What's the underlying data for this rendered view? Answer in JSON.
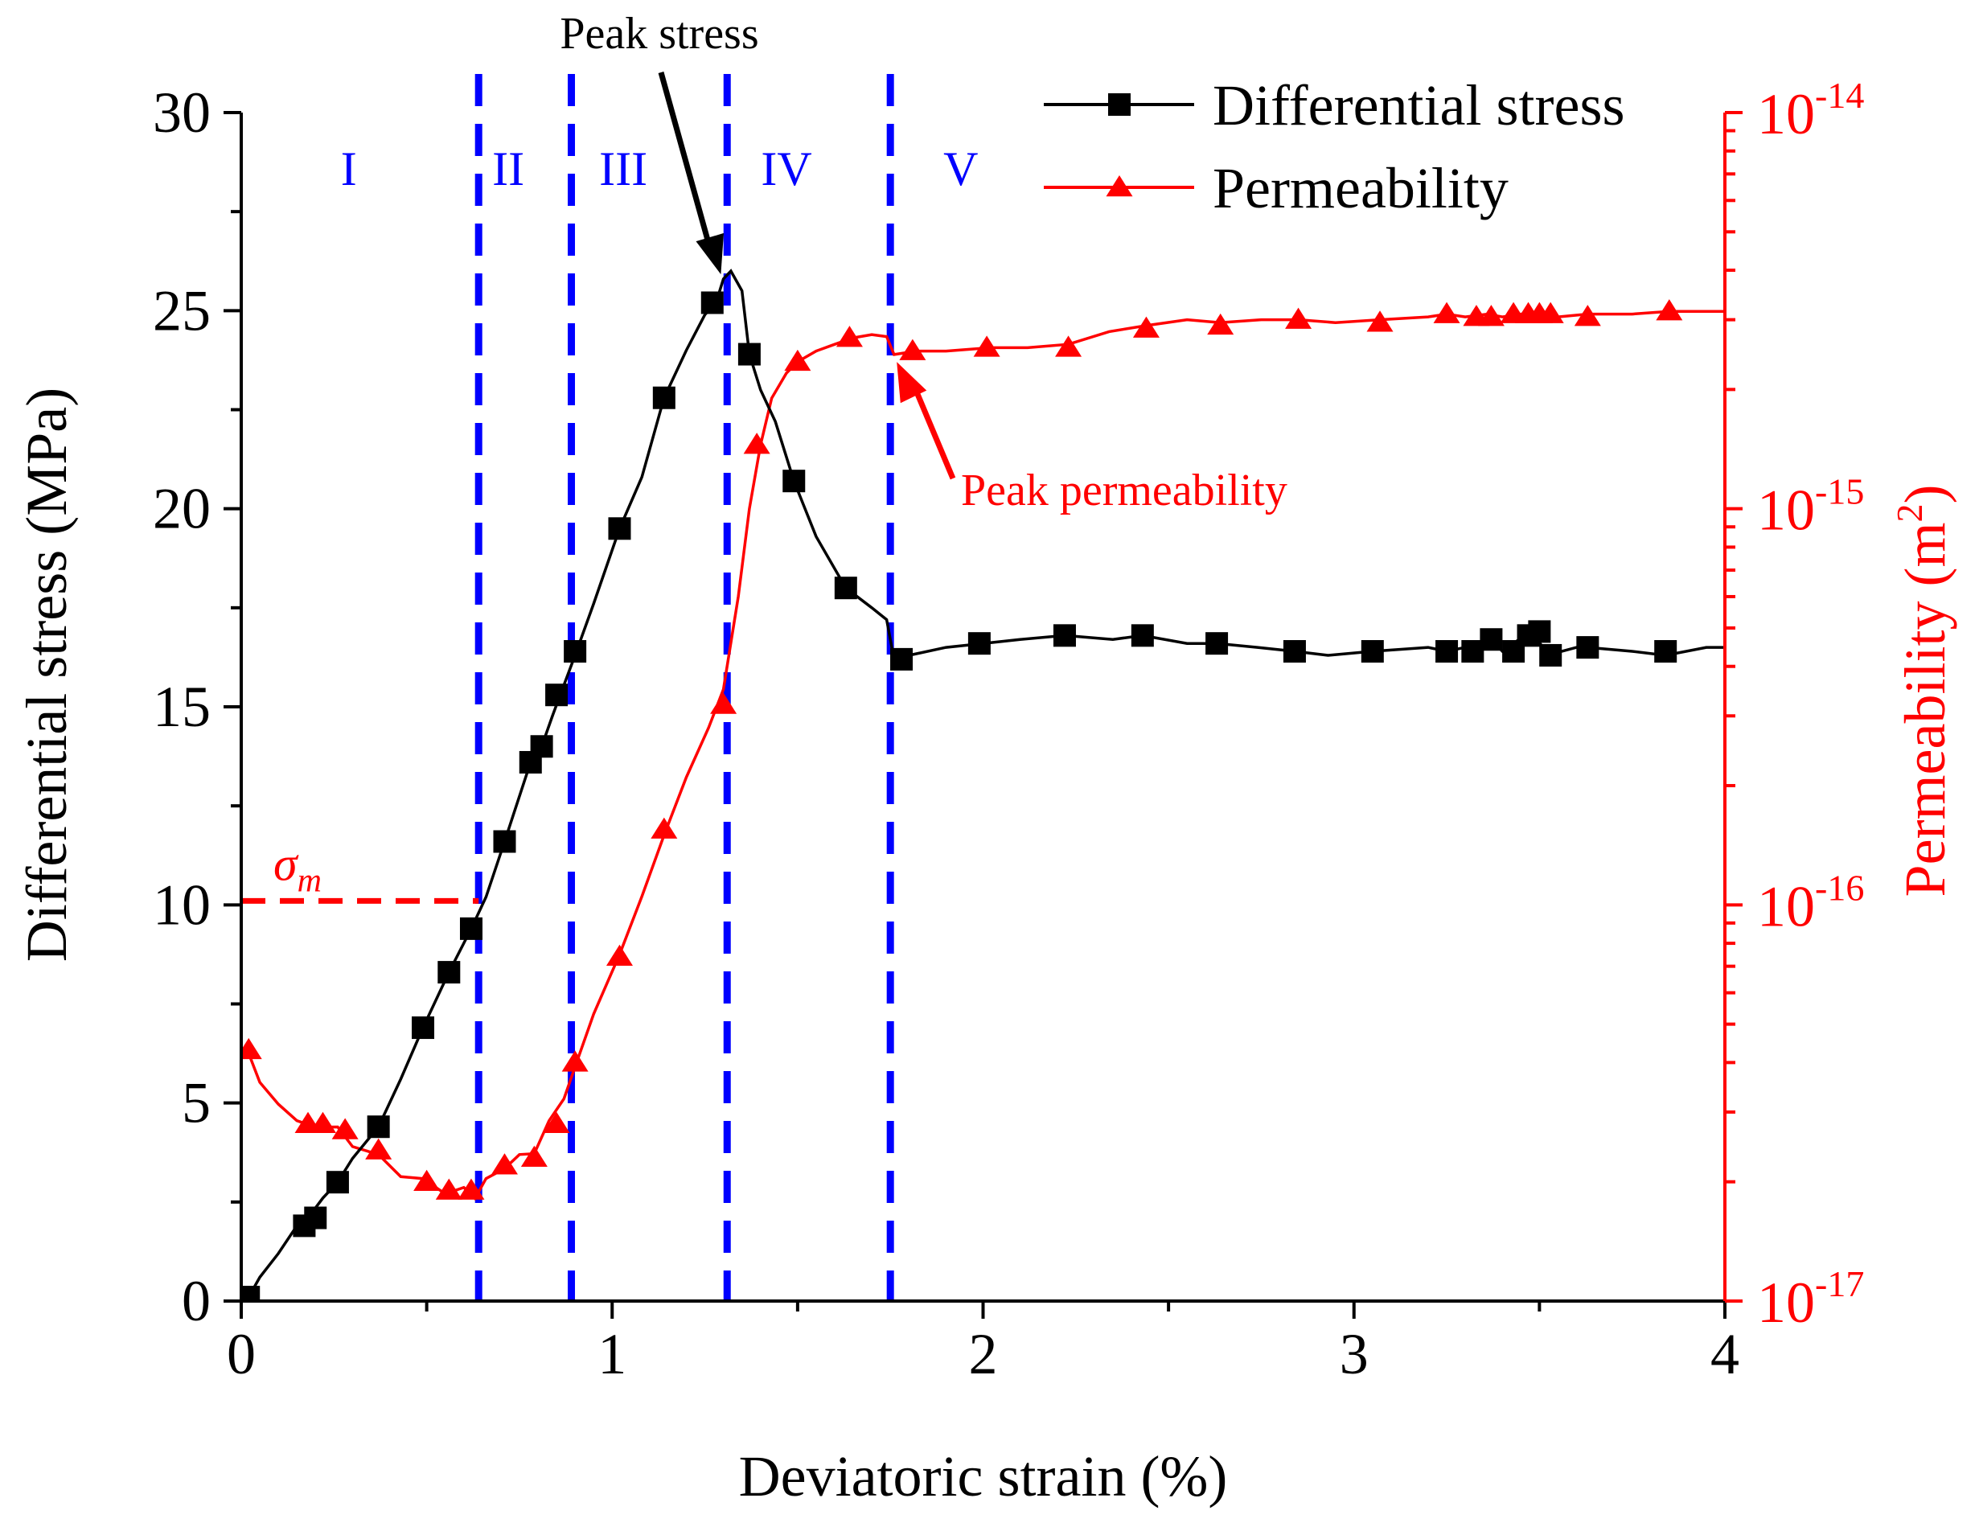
{
  "chart_data": {
    "type": "line",
    "xlabel": "Deviatoric strain (%)",
    "ylabel": "Differential stress (MPa)",
    "y2label_main": "Permeability (m",
    "y2label_sup": "2",
    "y2label_close": ")",
    "xlim": [
      0,
      4
    ],
    "ylim": [
      0,
      30
    ],
    "y2lim": [
      1e-17,
      1e-14
    ],
    "y2scale": "log",
    "xticks": [
      "0",
      "1",
      "2",
      "3",
      "4"
    ],
    "yticks": [
      "0",
      "5",
      "10",
      "15",
      "20",
      "25",
      "30"
    ],
    "y2ticks": [
      {
        "base": "10",
        "exp": "-17"
      },
      {
        "base": "10",
        "exp": "-16"
      },
      {
        "base": "10",
        "exp": "-15"
      },
      {
        "base": "10",
        "exp": "-14"
      }
    ],
    "legend_position": "top-right",
    "colors": {
      "stress": "#000000",
      "permeability": "#ff0000",
      "stage_lines": "#0000ff"
    },
    "series": [
      {
        "name": "Differential stress",
        "axis": "left",
        "marker": "square",
        "x": [
          0.02,
          0.05,
          0.1,
          0.15,
          0.18,
          0.22,
          0.26,
          0.3,
          0.37,
          0.43,
          0.49,
          0.56,
          0.62,
          0.66,
          0.71,
          0.78,
          0.81,
          0.84,
          0.86,
          0.9,
          0.95,
          1.02,
          1.08,
          1.14,
          1.2,
          1.25,
          1.28,
          1.3,
          1.32,
          1.35,
          1.37,
          1.4,
          1.44,
          1.49,
          1.55,
          1.63,
          1.7,
          1.74,
          1.76,
          1.8,
          1.9,
          2.0,
          2.1,
          2.22,
          2.35,
          2.43,
          2.55,
          2.63,
          2.74,
          2.84,
          2.93,
          3.05,
          3.2,
          3.25,
          3.3,
          3.34,
          3.37,
          3.4,
          3.43,
          3.46,
          3.49,
          3.52,
          3.6,
          3.63,
          3.75,
          3.84,
          3.95,
          4.0
        ],
        "y": [
          0.1,
          0.6,
          1.2,
          1.9,
          2.1,
          2.6,
          3.0,
          3.6,
          4.4,
          5.6,
          6.9,
          8.3,
          9.4,
          10.2,
          11.6,
          13.6,
          14.0,
          14.8,
          15.3,
          16.3,
          17.6,
          19.5,
          20.8,
          22.8,
          24.0,
          24.9,
          25.2,
          25.8,
          26.0,
          25.5,
          23.9,
          23.0,
          22.2,
          20.7,
          19.3,
          18.0,
          17.5,
          17.2,
          16.2,
          16.3,
          16.5,
          16.6,
          16.7,
          16.8,
          16.7,
          16.8,
          16.6,
          16.6,
          16.5,
          16.4,
          16.3,
          16.4,
          16.5,
          16.4,
          16.5,
          16.6,
          16.7,
          16.4,
          16.6,
          16.8,
          16.8,
          16.3,
          16.5,
          16.5,
          16.4,
          16.3,
          16.5,
          16.5
        ],
        "markers": [
          [
            0.02,
            0.1
          ],
          [
            0.17,
            1.9
          ],
          [
            0.2,
            2.1
          ],
          [
            0.26,
            3.0
          ],
          [
            0.37,
            4.4
          ],
          [
            0.49,
            6.9
          ],
          [
            0.56,
            8.3
          ],
          [
            0.62,
            9.4
          ],
          [
            0.71,
            11.6
          ],
          [
            0.78,
            13.6
          ],
          [
            0.81,
            14.0
          ],
          [
            0.85,
            15.3
          ],
          [
            0.9,
            16.4
          ],
          [
            1.02,
            19.5
          ],
          [
            1.14,
            22.8
          ],
          [
            1.27,
            25.2
          ],
          [
            1.37,
            23.9
          ],
          [
            1.49,
            20.7
          ],
          [
            1.63,
            18.0
          ],
          [
            1.78,
            16.2
          ],
          [
            1.99,
            16.6
          ],
          [
            2.22,
            16.8
          ],
          [
            2.43,
            16.8
          ],
          [
            2.63,
            16.6
          ],
          [
            2.84,
            16.4
          ],
          [
            3.05,
            16.4
          ],
          [
            3.25,
            16.4
          ],
          [
            3.32,
            16.4
          ],
          [
            3.37,
            16.7
          ],
          [
            3.43,
            16.4
          ],
          [
            3.47,
            16.8
          ],
          [
            3.5,
            16.9
          ],
          [
            3.53,
            16.3
          ],
          [
            3.63,
            16.5
          ],
          [
            3.84,
            16.4
          ]
        ]
      },
      {
        "name": "Permeability",
        "axis": "right",
        "marker": "triangle",
        "x": [
          0.02,
          0.05,
          0.1,
          0.15,
          0.2,
          0.26,
          0.3,
          0.37,
          0.43,
          0.49,
          0.55,
          0.6,
          0.63,
          0.66,
          0.71,
          0.75,
          0.79,
          0.83,
          0.87,
          0.9,
          0.95,
          1.02,
          1.08,
          1.14,
          1.2,
          1.26,
          1.3,
          1.34,
          1.37,
          1.4,
          1.43,
          1.47,
          1.5,
          1.55,
          1.6,
          1.65,
          1.7,
          1.74,
          1.76,
          1.82,
          1.9,
          2.02,
          2.12,
          2.23,
          2.34,
          2.44,
          2.55,
          2.64,
          2.75,
          2.85,
          2.95,
          3.07,
          3.2,
          3.25,
          3.3,
          3.36,
          3.4,
          3.45,
          3.5,
          3.55,
          3.63,
          3.75,
          3.85,
          4.0
        ],
        "y": [
          4.3e-17,
          3.5e-17,
          3.2e-17,
          2.8e-17,
          2.8e-17,
          2.7e-17,
          2.5e-17,
          2.3e-17,
          2.1e-17,
          2e-17,
          1.9e-17,
          1.9e-17,
          1.85e-17,
          2e-17,
          2.2e-17,
          2.3e-17,
          2.4e-17,
          2.8e-17,
          3.3e-17,
          3.9e-17,
          5.3e-17,
          7.5e-17,
          1.05e-16,
          1.5e-16,
          2.1e-16,
          2.8e-16,
          3.5e-16,
          6e-16,
          1e-15,
          1.45e-15,
          1.9e-15,
          2.2e-15,
          2.35e-15,
          2.5e-15,
          2.6e-15,
          2.7e-15,
          2.75e-15,
          2.72e-15,
          2.45e-15,
          2.5e-15,
          2.5e-15,
          2.55e-15,
          2.55e-15,
          2.6e-15,
          2.8e-15,
          2.9e-15,
          3e-15,
          2.95e-15,
          3e-15,
          3e-15,
          2.95e-15,
          3e-15,
          3.05e-15,
          3.1e-15,
          3.05e-15,
          3.1e-15,
          3.05e-15,
          3.1e-15,
          3.1e-15,
          3.05e-15,
          3.1e-15,
          3.1e-15,
          3.15e-15,
          3.15e-15
        ],
        "markers": [
          [
            0.02,
            4.3e-17
          ],
          [
            0.18,
            2.8e-17
          ],
          [
            0.22,
            2.8e-17
          ],
          [
            0.28,
            2.7e-17
          ],
          [
            0.37,
            2.4e-17
          ],
          [
            0.5,
            2e-17
          ],
          [
            0.56,
            1.9e-17
          ],
          [
            0.62,
            1.9e-17
          ],
          [
            0.71,
            2.2e-17
          ],
          [
            0.79,
            2.3e-17
          ],
          [
            0.85,
            2.8e-17
          ],
          [
            0.9,
            4e-17
          ],
          [
            1.02,
            7.4e-17
          ],
          [
            1.14,
            1.55e-16
          ],
          [
            1.3,
            3.2e-16
          ],
          [
            1.39,
            1.45e-15
          ],
          [
            1.5,
            2.35e-15
          ],
          [
            1.64,
            2.7e-15
          ],
          [
            1.81,
            2.5e-15
          ],
          [
            2.01,
            2.55e-15
          ],
          [
            2.23,
            2.55e-15
          ],
          [
            2.44,
            2.85e-15
          ],
          [
            2.64,
            2.9e-15
          ],
          [
            2.85,
            3e-15
          ],
          [
            3.07,
            2.95e-15
          ],
          [
            3.25,
            3.1e-15
          ],
          [
            3.33,
            3.05e-15
          ],
          [
            3.37,
            3.05e-15
          ],
          [
            3.43,
            3.1e-15
          ],
          [
            3.47,
            3.1e-15
          ],
          [
            3.5,
            3.1e-15
          ],
          [
            3.53,
            3.1e-15
          ],
          [
            3.63,
            3.05e-15
          ],
          [
            3.85,
            3.15e-15
          ]
        ]
      }
    ],
    "stage_boundaries": [
      0.64,
      0.89,
      1.31,
      1.75
    ],
    "stage_labels": [
      {
        "label": "I",
        "x": 0.29
      },
      {
        "label": "II",
        "x": 0.72
      },
      {
        "label": "III",
        "x": 1.03
      },
      {
        "label": "IV",
        "x": 1.47
      },
      {
        "label": "V",
        "x": 1.94
      }
    ],
    "annotations": {
      "peak_stress": {
        "text": "Peak stress",
        "x": 1.28,
        "y": 26.0
      },
      "peak_permeability": {
        "text": "Peak permeability",
        "x": 1.75,
        "y2": 2.7e-15
      },
      "sigma_m": {
        "symbol": "σ",
        "subscript": "m",
        "y": 10.1,
        "x_end": 0.64
      }
    }
  }
}
